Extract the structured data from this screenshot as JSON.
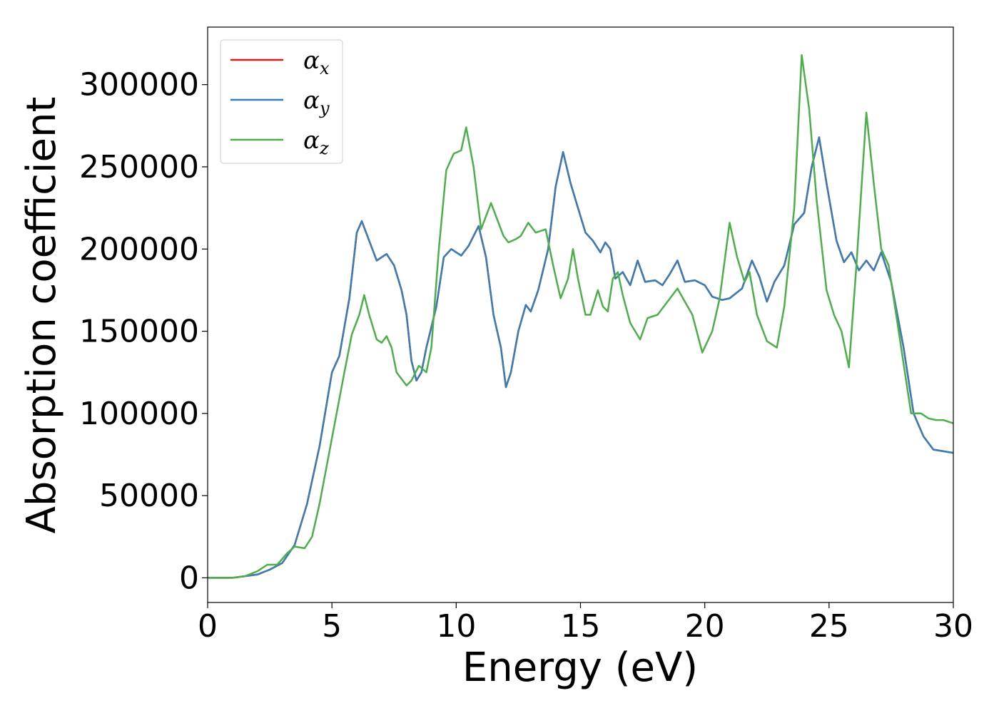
{
  "chart_data": {
    "type": "line",
    "xlabel": "Energy (eV)",
    "ylabel": "Absorption coefficient",
    "xlim": [
      0,
      30
    ],
    "ylim": [
      -15000,
      335000
    ],
    "xticks": [
      0,
      5,
      10,
      15,
      20,
      25,
      30
    ],
    "yticks": [
      0,
      50000,
      100000,
      150000,
      200000,
      250000,
      300000
    ],
    "grid": false,
    "legend": {
      "position": "top-left",
      "entries": [
        {
          "symbol": "α",
          "sub": "x",
          "color": "#e41a1c"
        },
        {
          "symbol": "α",
          "sub": "y",
          "color": "#377eb8"
        },
        {
          "symbol": "α",
          "sub": "z",
          "color": "#4daf4a"
        }
      ]
    },
    "series": [
      {
        "name": "αx",
        "color": "#e41a1c",
        "points": [
          [
            0,
            0
          ],
          [
            1,
            0
          ],
          [
            1.5,
            1000
          ],
          [
            2,
            2000
          ],
          [
            2.5,
            5000
          ],
          [
            3,
            9000
          ],
          [
            3.5,
            20000
          ],
          [
            4,
            45000
          ],
          [
            4.5,
            80000
          ],
          [
            5,
            125000
          ],
          [
            5.3,
            135000
          ],
          [
            5.7,
            170000
          ],
          [
            6,
            210000
          ],
          [
            6.2,
            217000
          ],
          [
            6.5,
            205000
          ],
          [
            6.8,
            193000
          ],
          [
            7,
            195000
          ],
          [
            7.2,
            197000
          ],
          [
            7.5,
            190000
          ],
          [
            7.8,
            175000
          ],
          [
            8,
            160000
          ],
          [
            8.2,
            132000
          ],
          [
            8.4,
            120000
          ],
          [
            8.6,
            125000
          ],
          [
            8.8,
            140000
          ],
          [
            9.2,
            165000
          ],
          [
            9.5,
            195000
          ],
          [
            9.8,
            200000
          ],
          [
            10.2,
            196000
          ],
          [
            10.5,
            202000
          ],
          [
            10.9,
            214000
          ],
          [
            11.2,
            195000
          ],
          [
            11.5,
            160000
          ],
          [
            11.8,
            140000
          ],
          [
            12,
            116000
          ],
          [
            12.2,
            125000
          ],
          [
            12.5,
            150000
          ],
          [
            12.8,
            166000
          ],
          [
            13,
            162000
          ],
          [
            13.3,
            175000
          ],
          [
            13.7,
            200000
          ],
          [
            14,
            238000
          ],
          [
            14.3,
            259000
          ],
          [
            14.6,
            240000
          ],
          [
            14.9,
            225000
          ],
          [
            15.2,
            210000
          ],
          [
            15.5,
            205000
          ],
          [
            15.8,
            198000
          ],
          [
            16,
            204000
          ],
          [
            16.2,
            200000
          ],
          [
            16.4,
            182000
          ],
          [
            16.7,
            186000
          ],
          [
            17,
            178000
          ],
          [
            17.3,
            193000
          ],
          [
            17.6,
            180000
          ],
          [
            18,
            181000
          ],
          [
            18.3,
            178000
          ],
          [
            18.6,
            185000
          ],
          [
            18.9,
            193000
          ],
          [
            19.2,
            180000
          ],
          [
            19.6,
            181000
          ],
          [
            20,
            178000
          ],
          [
            20.3,
            171000
          ],
          [
            20.7,
            169000
          ],
          [
            21,
            170000
          ],
          [
            21.5,
            176000
          ],
          [
            21.9,
            193000
          ],
          [
            22.2,
            183000
          ],
          [
            22.5,
            168000
          ],
          [
            22.8,
            180000
          ],
          [
            23.2,
            190000
          ],
          [
            23.6,
            215000
          ],
          [
            24,
            222000
          ],
          [
            24.3,
            250000
          ],
          [
            24.6,
            268000
          ],
          [
            24.9,
            240000
          ],
          [
            25.3,
            205000
          ],
          [
            25.6,
            192000
          ],
          [
            25.9,
            198000
          ],
          [
            26.2,
            187000
          ],
          [
            26.5,
            193000
          ],
          [
            26.8,
            187000
          ],
          [
            27.1,
            198000
          ],
          [
            27.5,
            180000
          ],
          [
            28,
            140000
          ],
          [
            28.4,
            100000
          ],
          [
            28.8,
            86000
          ],
          [
            29.2,
            78000
          ],
          [
            29.6,
            77000
          ],
          [
            30,
            76000
          ]
        ]
      },
      {
        "name": "αy",
        "color": "#377eb8",
        "points": [
          [
            0,
            0
          ],
          [
            1,
            0
          ],
          [
            1.5,
            1000
          ],
          [
            2,
            2000
          ],
          [
            2.5,
            5000
          ],
          [
            3,
            9000
          ],
          [
            3.5,
            20000
          ],
          [
            4,
            45000
          ],
          [
            4.5,
            80000
          ],
          [
            5,
            125000
          ],
          [
            5.3,
            135000
          ],
          [
            5.7,
            170000
          ],
          [
            6,
            210000
          ],
          [
            6.2,
            217000
          ],
          [
            6.5,
            205000
          ],
          [
            6.8,
            193000
          ],
          [
            7,
            195000
          ],
          [
            7.2,
            197000
          ],
          [
            7.5,
            190000
          ],
          [
            7.8,
            175000
          ],
          [
            8,
            160000
          ],
          [
            8.2,
            132000
          ],
          [
            8.4,
            120000
          ],
          [
            8.6,
            125000
          ],
          [
            8.8,
            140000
          ],
          [
            9.2,
            165000
          ],
          [
            9.5,
            195000
          ],
          [
            9.8,
            200000
          ],
          [
            10.2,
            196000
          ],
          [
            10.5,
            202000
          ],
          [
            10.9,
            214000
          ],
          [
            11.2,
            195000
          ],
          [
            11.5,
            160000
          ],
          [
            11.8,
            140000
          ],
          [
            12,
            116000
          ],
          [
            12.2,
            125000
          ],
          [
            12.5,
            150000
          ],
          [
            12.8,
            166000
          ],
          [
            13,
            162000
          ],
          [
            13.3,
            175000
          ],
          [
            13.7,
            200000
          ],
          [
            14,
            238000
          ],
          [
            14.3,
            259000
          ],
          [
            14.6,
            240000
          ],
          [
            14.9,
            225000
          ],
          [
            15.2,
            210000
          ],
          [
            15.5,
            205000
          ],
          [
            15.8,
            198000
          ],
          [
            16,
            204000
          ],
          [
            16.2,
            200000
          ],
          [
            16.4,
            182000
          ],
          [
            16.7,
            186000
          ],
          [
            17,
            178000
          ],
          [
            17.3,
            193000
          ],
          [
            17.6,
            180000
          ],
          [
            18,
            181000
          ],
          [
            18.3,
            178000
          ],
          [
            18.6,
            185000
          ],
          [
            18.9,
            193000
          ],
          [
            19.2,
            180000
          ],
          [
            19.6,
            181000
          ],
          [
            20,
            178000
          ],
          [
            20.3,
            171000
          ],
          [
            20.7,
            169000
          ],
          [
            21,
            170000
          ],
          [
            21.5,
            176000
          ],
          [
            21.9,
            193000
          ],
          [
            22.2,
            183000
          ],
          [
            22.5,
            168000
          ],
          [
            22.8,
            180000
          ],
          [
            23.2,
            190000
          ],
          [
            23.6,
            215000
          ],
          [
            24,
            222000
          ],
          [
            24.3,
            250000
          ],
          [
            24.6,
            268000
          ],
          [
            24.9,
            240000
          ],
          [
            25.3,
            205000
          ],
          [
            25.6,
            192000
          ],
          [
            25.9,
            198000
          ],
          [
            26.2,
            187000
          ],
          [
            26.5,
            193000
          ],
          [
            26.8,
            187000
          ],
          [
            27.1,
            198000
          ],
          [
            27.5,
            180000
          ],
          [
            28,
            140000
          ],
          [
            28.4,
            100000
          ],
          [
            28.8,
            86000
          ],
          [
            29.2,
            78000
          ],
          [
            29.6,
            77000
          ],
          [
            30,
            76000
          ]
        ]
      },
      {
        "name": "αz",
        "color": "#4daf4a",
        "points": [
          [
            0,
            0
          ],
          [
            1,
            0
          ],
          [
            1.5,
            1000
          ],
          [
            2,
            4000
          ],
          [
            2.4,
            8000
          ],
          [
            2.8,
            8000
          ],
          [
            3.2,
            15000
          ],
          [
            3.5,
            19000
          ],
          [
            3.9,
            18000
          ],
          [
            4.2,
            25000
          ],
          [
            4.5,
            45000
          ],
          [
            5,
            85000
          ],
          [
            5.5,
            125000
          ],
          [
            5.8,
            148000
          ],
          [
            6.1,
            160000
          ],
          [
            6.3,
            172000
          ],
          [
            6.5,
            160000
          ],
          [
            6.8,
            145000
          ],
          [
            7,
            143000
          ],
          [
            7.2,
            147000
          ],
          [
            7.4,
            140000
          ],
          [
            7.6,
            125000
          ],
          [
            8,
            117000
          ],
          [
            8.2,
            120000
          ],
          [
            8.5,
            129000
          ],
          [
            8.8,
            125000
          ],
          [
            9,
            140000
          ],
          [
            9.3,
            200000
          ],
          [
            9.6,
            248000
          ],
          [
            9.9,
            258000
          ],
          [
            10.2,
            260000
          ],
          [
            10.4,
            274000
          ],
          [
            10.7,
            250000
          ],
          [
            11,
            212000
          ],
          [
            11.4,
            228000
          ],
          [
            11.6,
            220000
          ],
          [
            11.9,
            208000
          ],
          [
            12.1,
            204000
          ],
          [
            12.4,
            206000
          ],
          [
            12.6,
            208000
          ],
          [
            12.9,
            216000
          ],
          [
            13.2,
            210000
          ],
          [
            13.6,
            212000
          ],
          [
            13.9,
            190000
          ],
          [
            14.2,
            170000
          ],
          [
            14.5,
            182000
          ],
          [
            14.7,
            200000
          ],
          [
            14.9,
            182000
          ],
          [
            15.2,
            160000
          ],
          [
            15.4,
            160000
          ],
          [
            15.7,
            175000
          ],
          [
            15.9,
            165000
          ],
          [
            16.1,
            162000
          ],
          [
            16.3,
            182000
          ],
          [
            16.5,
            186000
          ],
          [
            16.7,
            172000
          ],
          [
            17,
            155000
          ],
          [
            17.4,
            145000
          ],
          [
            17.7,
            158000
          ],
          [
            18.1,
            160000
          ],
          [
            18.5,
            168000
          ],
          [
            18.9,
            176000
          ],
          [
            19.2,
            168000
          ],
          [
            19.5,
            160000
          ],
          [
            19.9,
            137000
          ],
          [
            20.3,
            150000
          ],
          [
            20.6,
            170000
          ],
          [
            21,
            216000
          ],
          [
            21.3,
            195000
          ],
          [
            21.6,
            180000
          ],
          [
            21.8,
            186000
          ],
          [
            22.1,
            160000
          ],
          [
            22.5,
            144000
          ],
          [
            22.9,
            140000
          ],
          [
            23.2,
            165000
          ],
          [
            23.6,
            225000
          ],
          [
            23.9,
            318000
          ],
          [
            24.2,
            285000
          ],
          [
            24.5,
            230000
          ],
          [
            24.9,
            175000
          ],
          [
            25.2,
            160000
          ],
          [
            25.5,
            150000
          ],
          [
            25.8,
            128000
          ],
          [
            26.1,
            190000
          ],
          [
            26.5,
            283000
          ],
          [
            26.8,
            240000
          ],
          [
            27.1,
            200000
          ],
          [
            27.4,
            190000
          ],
          [
            27.8,
            150000
          ],
          [
            28.3,
            100000
          ],
          [
            28.7,
            100000
          ],
          [
            29,
            97000
          ],
          [
            29.3,
            96000
          ],
          [
            29.6,
            96000
          ],
          [
            29.8,
            95000
          ],
          [
            30,
            94000
          ]
        ]
      }
    ]
  }
}
